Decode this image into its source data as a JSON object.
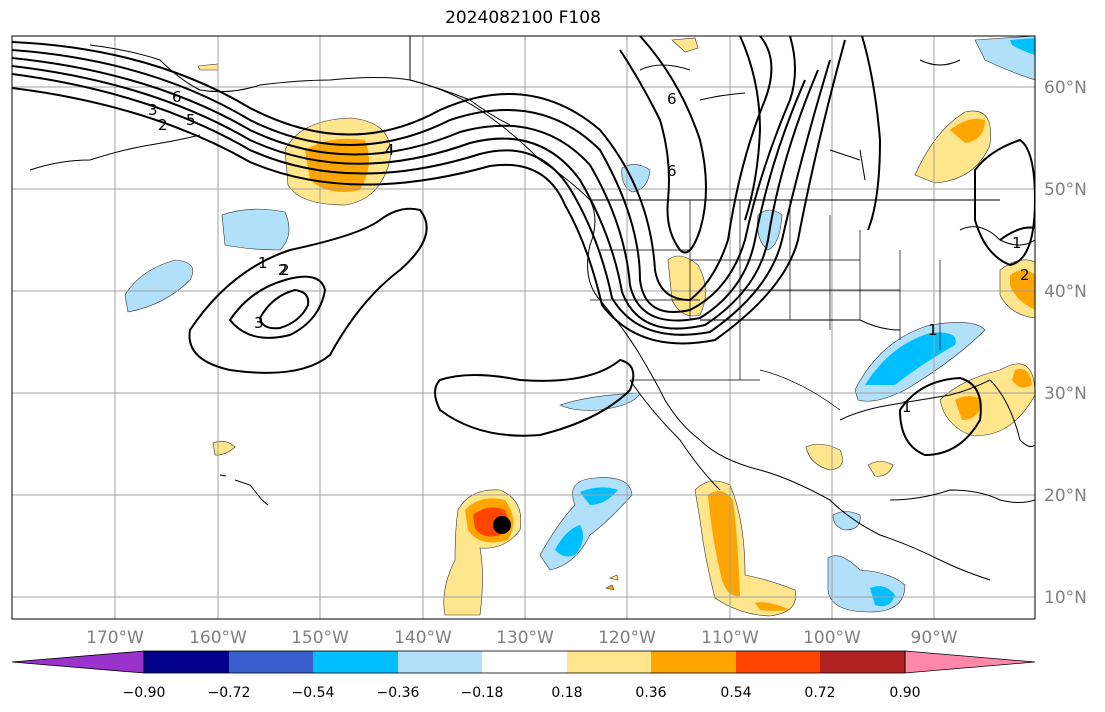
{
  "title": "2024082100 F108",
  "map": {
    "lon_labels": [
      "170°W",
      "160°W",
      "150°W",
      "140°W",
      "130°W",
      "120°W",
      "110°W",
      "100°W",
      "90°W"
    ],
    "lat_labels": [
      "60°N",
      "50°N",
      "40°N",
      "30°N",
      "20°N",
      "10°N"
    ],
    "contour_labels": [
      "3",
      "6",
      "5",
      "2",
      "4",
      "6",
      "6",
      "2",
      "1",
      "2",
      "3",
      "1",
      "1",
      "2",
      "1"
    ],
    "label_color": "#808080",
    "storm_marker": {
      "lon": -132.5,
      "lat": 17.0,
      "color": "#000000"
    }
  },
  "colorbar": {
    "colors": [
      "#9933cc",
      "#00008b",
      "#3a5fcd",
      "#00bfff",
      "#b0e0fa",
      "#ffffff",
      "#ffe68c",
      "#ffa500",
      "#ff4500",
      "#b22222",
      "#ff88aa"
    ],
    "tick_labels": [
      "−0.90",
      "−0.72",
      "−0.54",
      "−0.36",
      "−0.18",
      "0.18",
      "0.36",
      "0.54",
      "0.72",
      "0.90"
    ]
  }
}
